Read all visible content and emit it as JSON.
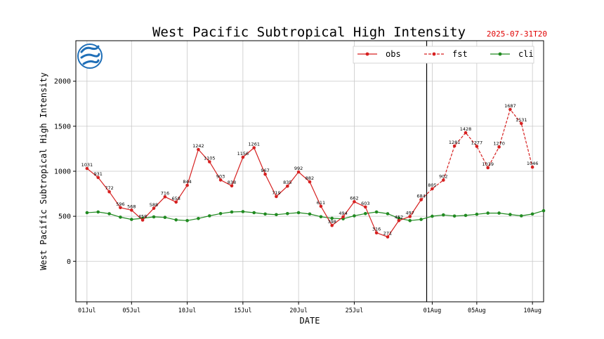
{
  "chart_data": {
    "type": "line",
    "title": "West Pacific Subtropical High Intensity",
    "init_time": "2025-07-31T20",
    "xlabel": "DATE",
    "ylabel": "West Pacific Subtropical High Intensity",
    "ylim": [
      -450,
      2450
    ],
    "yticks": [
      0,
      500,
      1000,
      1500,
      2000
    ],
    "x_start": "2025-07-01",
    "x_end": "2025-08-10",
    "xticks": [
      {
        "day": 0,
        "label": "01Jul"
      },
      {
        "day": 4,
        "label": "05Jul"
      },
      {
        "day": 9,
        "label": "10Jul"
      },
      {
        "day": 14,
        "label": "15Jul"
      },
      {
        "day": 19,
        "label": "20Jul"
      },
      {
        "day": 24,
        "label": "25Jul"
      },
      {
        "day": 31,
        "label": "01Aug"
      },
      {
        "day": 35,
        "label": "05Aug"
      },
      {
        "day": 40,
        "label": "10Aug"
      }
    ],
    "grid": true,
    "legend_position": "top-right",
    "colors": {
      "obs": "#d62020",
      "fst": "#d62020",
      "cli": "#208a20",
      "marker_obs": "#d62020",
      "split_line": "#000000"
    },
    "series": [
      {
        "name": "obs",
        "style": "solid",
        "start_day": 0,
        "values": [
          1031,
          931,
          772,
          596,
          568,
          458,
          588,
          716,
          658,
          844,
          1242,
          1105,
          903,
          838,
          1156,
          1261,
          967,
          719,
          835,
          992,
          882,
          611,
          398,
          494,
          662,
          603,
          316,
          271,
          452,
          497,
          684
        ]
      },
      {
        "name": "fst",
        "style": "dashed",
        "start_day": 30,
        "values": [
          684,
          805,
          902,
          1281,
          1428,
          1277,
          1039,
          1270,
          1687,
          1531,
          1046
        ]
      },
      {
        "name": "cli",
        "style": "solid",
        "start_day": 0,
        "values": [
          540,
          548,
          528,
          490,
          465,
          478,
          493,
          488,
          460,
          452,
          475,
          505,
          530,
          548,
          552,
          540,
          525,
          518,
          530,
          540,
          525,
          495,
          478,
          472,
          505,
          530,
          548,
          528,
          478,
          452,
          465,
          500,
          515,
          503,
          510,
          522,
          535,
          535,
          520,
          505,
          525,
          562
        ]
      }
    ],
    "data_labels": [
      {
        "day": 0,
        "text": "1031"
      },
      {
        "day": 1,
        "text": "931"
      },
      {
        "day": 2,
        "text": "772"
      },
      {
        "day": 3,
        "text": "596"
      },
      {
        "day": 4,
        "text": "568"
      },
      {
        "day": 5,
        "text": "458"
      },
      {
        "day": 6,
        "text": "588"
      },
      {
        "day": 7,
        "text": "716"
      },
      {
        "day": 8,
        "text": "658"
      },
      {
        "day": 9,
        "text": "844"
      },
      {
        "day": 10,
        "text": "1242"
      },
      {
        "day": 11,
        "text": "1105"
      },
      {
        "day": 12,
        "text": "903"
      },
      {
        "day": 13,
        "text": "838"
      },
      {
        "day": 14,
        "text": "1156"
      },
      {
        "day": 15,
        "text": "1261"
      },
      {
        "day": 16,
        "text": "967"
      },
      {
        "day": 17,
        "text": "719"
      },
      {
        "day": 18,
        "text": "835"
      },
      {
        "day": 19,
        "text": "992"
      },
      {
        "day": 20,
        "text": "882"
      },
      {
        "day": 21,
        "text": "611"
      },
      {
        "day": 22,
        "text": "398"
      },
      {
        "day": 23,
        "text": "494"
      },
      {
        "day": 24,
        "text": "662"
      },
      {
        "day": 25,
        "text": "603"
      },
      {
        "day": 26,
        "text": "316"
      },
      {
        "day": 27,
        "text": "271"
      },
      {
        "day": 28,
        "text": "452"
      },
      {
        "day": 29,
        "text": "497"
      },
      {
        "day": 30,
        "text": "684"
      },
      {
        "day": 31,
        "text": "805"
      },
      {
        "day": 32,
        "text": "902"
      },
      {
        "day": 33,
        "text": "1281"
      },
      {
        "day": 34,
        "text": "1428"
      },
      {
        "day": 35,
        "text": "1277"
      },
      {
        "day": 36,
        "text": "1039"
      },
      {
        "day": 37,
        "text": "1270"
      },
      {
        "day": 38,
        "text": "1687"
      },
      {
        "day": 39,
        "text": "1531"
      },
      {
        "day": 40,
        "text": "1046"
      }
    ],
    "split_day": 30.5
  },
  "logo": {
    "icon": "cma-logo-icon",
    "color": "#1f6fb8"
  }
}
